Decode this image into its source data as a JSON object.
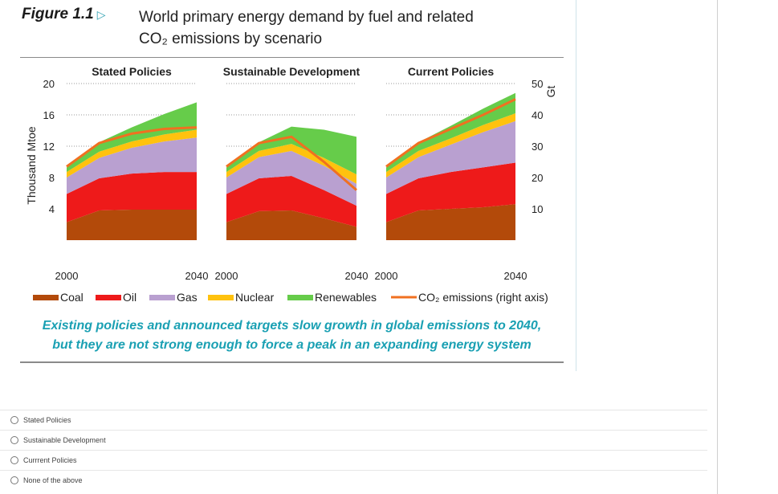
{
  "figure": {
    "label": "Figure 1.1",
    "title_line1": "World primary energy demand by fuel and related",
    "title_line2": "CO₂ emissions by scenario",
    "caption_line1": "Existing policies and announced targets slow growth in global emissions to 2040,",
    "caption_line2": "but they are not strong enough to force a peak in an expanding energy system"
  },
  "chart_data": {
    "type": "area",
    "ylabel": "Thousand Mtoe",
    "ylabel_right": "Gt",
    "y_ticks": [
      "4",
      "8",
      "12",
      "16",
      "20"
    ],
    "y_right_ticks": [
      "10",
      "20",
      "30",
      "40",
      "50"
    ],
    "ylim": [
      0,
      20
    ],
    "ylim_right": [
      0,
      50
    ],
    "x": [
      2000,
      2010,
      2020,
      2030,
      2040
    ],
    "x_tick_labels": [
      "2000",
      "2040"
    ],
    "fuel_colors": {
      "Coal": "#b34a0a",
      "Oil": "#ee1a1a",
      "Gas": "#b9a0d0",
      "Nuclear": "#ffc20e",
      "Renewables": "#66cc4a",
      "CO2": "#f07020"
    },
    "legend": [
      "Coal",
      "Oil",
      "Gas",
      "Nuclear",
      "Renewables",
      "CO₂ emissions (right axis)"
    ],
    "panels": [
      {
        "title": "Stated Policies",
        "series": [
          {
            "name": "Coal",
            "values": [
              2.3,
              3.8,
              3.9,
              3.9,
              3.9
            ]
          },
          {
            "name": "Oil",
            "values": [
              3.6,
              4.1,
              4.6,
              4.8,
              4.8
            ]
          },
          {
            "name": "Gas",
            "values": [
              2.1,
              2.6,
              3.3,
              3.9,
              4.4
            ]
          },
          {
            "name": "Nuclear",
            "values": [
              0.7,
              0.8,
              0.8,
              0.9,
              1.0
            ]
          },
          {
            "name": "Renewables",
            "values": [
              0.6,
              1.2,
              1.8,
              2.6,
              3.5
            ]
          }
        ],
        "co2": [
          23.5,
          31,
          34,
          35.5,
          36
        ]
      },
      {
        "title": "Sustainable Development",
        "series": [
          {
            "name": "Coal",
            "values": [
              2.3,
              3.7,
              3.8,
              2.8,
              1.7
            ]
          },
          {
            "name": "Oil",
            "values": [
              3.6,
              4.2,
              4.4,
              3.6,
              2.7
            ]
          },
          {
            "name": "Gas",
            "values": [
              2.1,
              2.7,
              3.2,
              3.1,
              2.8
            ]
          },
          {
            "name": "Nuclear",
            "values": [
              0.7,
              0.8,
              0.9,
              1.0,
              1.2
            ]
          },
          {
            "name": "Renewables",
            "values": [
              0.6,
              1.1,
              2.2,
              3.6,
              4.8
            ]
          }
        ],
        "co2": [
          23.5,
          31,
          33,
          25,
          16
        ]
      },
      {
        "title": "Current Policies",
        "series": [
          {
            "name": "Coal",
            "values": [
              2.3,
              3.8,
              4.0,
              4.2,
              4.6
            ]
          },
          {
            "name": "Oil",
            "values": [
              3.6,
              4.1,
              4.7,
              5.1,
              5.3
            ]
          },
          {
            "name": "Gas",
            "values": [
              2.1,
              2.7,
              3.5,
              4.5,
              5.3
            ]
          },
          {
            "name": "Nuclear",
            "values": [
              0.7,
              0.8,
              0.8,
              0.9,
              1.0
            ]
          },
          {
            "name": "Renewables",
            "values": [
              0.6,
              1.1,
              1.6,
              2.1,
              2.6
            ]
          }
        ],
        "co2": [
          23.5,
          31,
          35.5,
          40,
          45
        ]
      }
    ]
  },
  "quiz": {
    "options": [
      "Stated Policies",
      "Sustainable Development",
      "Currrent Policies",
      "None of the above"
    ]
  }
}
